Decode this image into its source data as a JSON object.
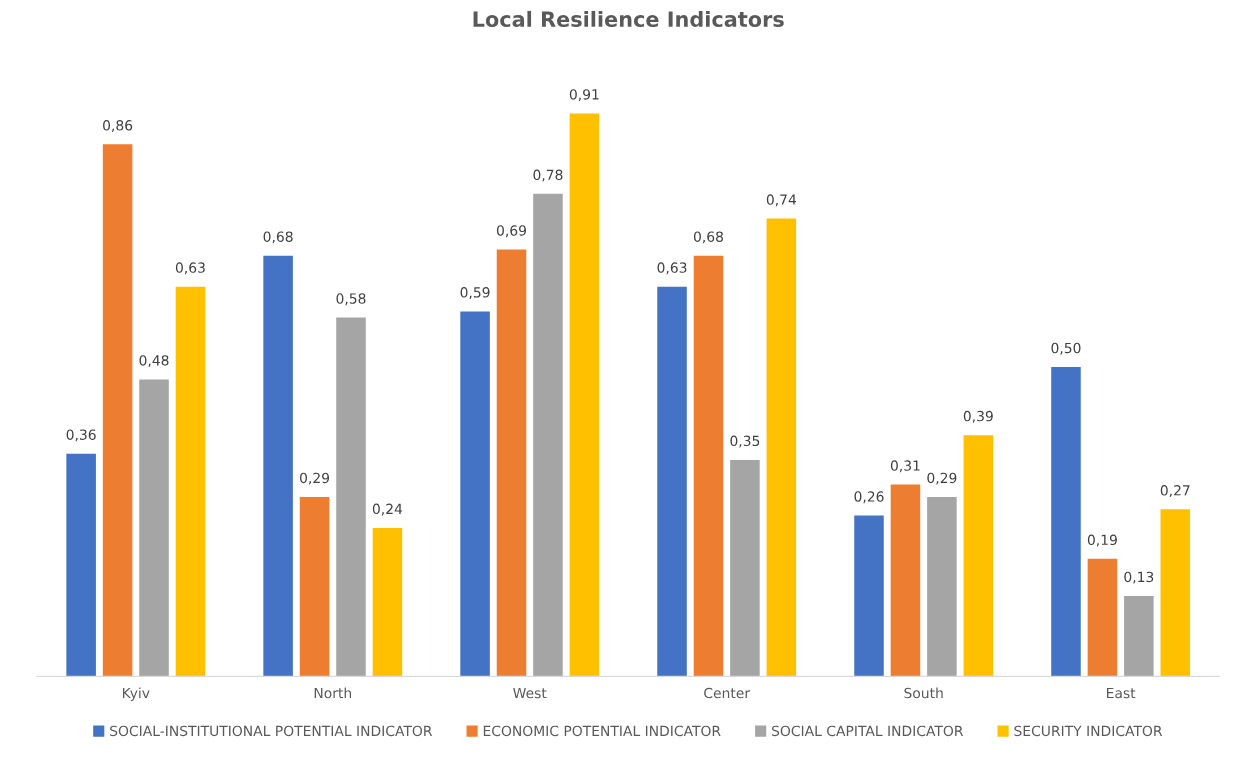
{
  "chart_data": {
    "type": "bar",
    "title": "Local Resilience Indicators",
    "categories": [
      "Kyiv",
      "North",
      "West",
      "Center",
      "South",
      "East"
    ],
    "series": [
      {
        "name": "SOCIAL-INSTITUTIONAL POTENTIAL INDICATOR",
        "color": "#4472c4",
        "values": [
          0.36,
          0.68,
          0.59,
          0.63,
          0.26,
          0.5
        ],
        "value_labels": [
          "0,36",
          "0,68",
          "0,59",
          "0,63",
          "0,26",
          "0,50"
        ]
      },
      {
        "name": "ECONOMIC POTENTIAL INDICATOR",
        "color": "#ed7d31",
        "values": [
          0.86,
          0.29,
          0.69,
          0.68,
          0.31,
          0.19
        ],
        "value_labels": [
          "0,86",
          "0,29",
          "0,69",
          "0,68",
          "0,31",
          "0,19"
        ]
      },
      {
        "name": "SOCIAL CAPITAL INDICATOR",
        "color": "#a5a5a5",
        "values": [
          0.48,
          0.58,
          0.78,
          0.35,
          0.29,
          0.13
        ],
        "value_labels": [
          "0,48",
          "0,58",
          "0,78",
          "0,35",
          "0,29",
          "0,13"
        ]
      },
      {
        "name": "SECURITY INDICATOR",
        "color": "#ffc000",
        "values": [
          0.63,
          0.24,
          0.91,
          0.74,
          0.39,
          0.27
        ],
        "value_labels": [
          "0,63",
          "0,24",
          "0,91",
          "0,74",
          "0,39",
          "0,27"
        ]
      }
    ],
    "grid": false,
    "legend": "bottom"
  }
}
